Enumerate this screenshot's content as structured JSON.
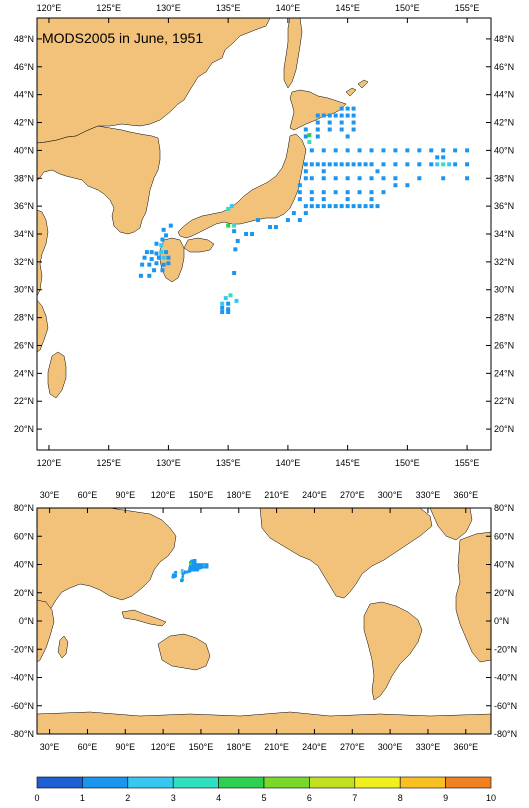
{
  "title": "MODS2005 in June, 1951",
  "colors": {
    "land": "#f2c27a",
    "ocean": "#ffffff",
    "frame": "#000000"
  },
  "regional_map": {
    "lon_range": [
      119,
      157
    ],
    "lat_range": [
      18.5,
      49.5
    ],
    "lon_ticks": [
      120,
      125,
      130,
      135,
      140,
      145,
      150,
      155
    ],
    "lon_labels": [
      "120°E",
      "125°E",
      "130°E",
      "135°E",
      "140°E",
      "145°E",
      "150°E",
      "155°E"
    ],
    "lat_ticks": [
      20,
      22,
      24,
      26,
      28,
      30,
      32,
      34,
      36,
      38,
      40,
      42,
      44,
      46,
      48
    ],
    "lat_labels": [
      "20°N",
      "22°N",
      "24°N",
      "26°N",
      "28°N",
      "30°N",
      "32°N",
      "34°N",
      "36°N",
      "38°N",
      "40°N",
      "42°N",
      "44°N",
      "46°N",
      "48°N"
    ]
  },
  "global_map": {
    "lon_range": [
      20,
      380
    ],
    "lat_range": [
      -80,
      80
    ],
    "lon_ticks": [
      30,
      60,
      90,
      120,
      150,
      180,
      210,
      240,
      270,
      300,
      330,
      360
    ],
    "lon_labels": [
      "30°E",
      "60°E",
      "90°E",
      "120°E",
      "150°E",
      "180°E",
      "210°E",
      "240°E",
      "270°E",
      "300°E",
      "330°E",
      "360°E"
    ],
    "lat_ticks": [
      -80,
      -60,
      -40,
      -20,
      0,
      20,
      40,
      60,
      80
    ],
    "lat_labels": [
      "-80°N",
      "-60°N",
      "-40°N",
      "-20°N",
      "0°N",
      "20°N",
      "40°N",
      "60°N",
      "80°N"
    ]
  },
  "colorbar": {
    "levels": [
      0,
      1,
      2,
      3,
      4,
      5,
      6,
      7,
      8,
      9,
      10
    ],
    "labels": [
      "0",
      "1",
      "2",
      "3",
      "4",
      "5",
      "6",
      "7",
      "8",
      "9",
      "10"
    ],
    "colors": [
      "#1f5fd6",
      "#1a96f0",
      "#35c8f0",
      "#2ee0c0",
      "#2ed050",
      "#7ad82a",
      "#c0e020",
      "#f0f020",
      "#f8c020",
      "#f08020"
    ]
  },
  "observations": {
    "description": "gridded observation counts (value 0-10)",
    "cells": [
      {
        "lon": 142.5,
        "lat": 42.5,
        "v": 1
      },
      {
        "lon": 143,
        "lat": 42.5,
        "v": 1
      },
      {
        "lon": 143.5,
        "lat": 42.5,
        "v": 1
      },
      {
        "lon": 144,
        "lat": 42.5,
        "v": 1
      },
      {
        "lon": 144.5,
        "lat": 42.5,
        "v": 1
      },
      {
        "lon": 145,
        "lat": 42.5,
        "v": 1
      },
      {
        "lon": 145.5,
        "lat": 42.5,
        "v": 1
      },
      {
        "lon": 144.5,
        "lat": 43,
        "v": 1
      },
      {
        "lon": 145,
        "lat": 43,
        "v": 1
      },
      {
        "lon": 145.5,
        "lat": 43,
        "v": 1
      },
      {
        "lon": 142.5,
        "lat": 42,
        "v": 1
      },
      {
        "lon": 143.5,
        "lat": 42,
        "v": 1
      },
      {
        "lon": 144.5,
        "lat": 42,
        "v": 1
      },
      {
        "lon": 145.5,
        "lat": 42,
        "v": 1
      },
      {
        "lon": 141.5,
        "lat": 41.5,
        "v": 1
      },
      {
        "lon": 142.5,
        "lat": 41.5,
        "v": 1
      },
      {
        "lon": 143.5,
        "lat": 41.5,
        "v": 1
      },
      {
        "lon": 144.5,
        "lat": 41.5,
        "v": 1
      },
      {
        "lon": 145.5,
        "lat": 41.5,
        "v": 1
      },
      {
        "lon": 141.5,
        "lat": 41,
        "v": 1
      },
      {
        "lon": 142.5,
        "lat": 41,
        "v": 1
      },
      {
        "lon": 145,
        "lat": 41,
        "v": 1
      },
      {
        "lon": 142,
        "lat": 40,
        "v": 1
      },
      {
        "lon": 143,
        "lat": 40,
        "v": 1
      },
      {
        "lon": 144,
        "lat": 40,
        "v": 1
      },
      {
        "lon": 145,
        "lat": 40,
        "v": 1
      },
      {
        "lon": 146,
        "lat": 40,
        "v": 1
      },
      {
        "lon": 147,
        "lat": 40,
        "v": 1
      },
      {
        "lon": 148,
        "lat": 40,
        "v": 1
      },
      {
        "lon": 149,
        "lat": 40,
        "v": 1
      },
      {
        "lon": 150,
        "lat": 40,
        "v": 1
      },
      {
        "lon": 151,
        "lat": 40,
        "v": 1
      },
      {
        "lon": 152,
        "lat": 40,
        "v": 1
      },
      {
        "lon": 153,
        "lat": 40,
        "v": 1
      },
      {
        "lon": 154,
        "lat": 40,
        "v": 1
      },
      {
        "lon": 155,
        "lat": 40,
        "v": 1
      },
      {
        "lon": 152.5,
        "lat": 39.5,
        "v": 1
      },
      {
        "lon": 153,
        "lat": 39.5,
        "v": 1
      },
      {
        "lon": 141.5,
        "lat": 39,
        "v": 1
      },
      {
        "lon": 142,
        "lat": 39,
        "v": 1
      },
      {
        "lon": 142.5,
        "lat": 39,
        "v": 1
      },
      {
        "lon": 143,
        "lat": 39,
        "v": 1
      },
      {
        "lon": 143.5,
        "lat": 39,
        "v": 1
      },
      {
        "lon": 144,
        "lat": 39,
        "v": 1
      },
      {
        "lon": 144.5,
        "lat": 39,
        "v": 1
      },
      {
        "lon": 145,
        "lat": 39,
        "v": 1
      },
      {
        "lon": 145.5,
        "lat": 39,
        "v": 1
      },
      {
        "lon": 146,
        "lat": 39,
        "v": 1
      },
      {
        "lon": 146.5,
        "lat": 39,
        "v": 1
      },
      {
        "lon": 147,
        "lat": 39,
        "v": 1
      },
      {
        "lon": 148,
        "lat": 39,
        "v": 1
      },
      {
        "lon": 149,
        "lat": 39,
        "v": 1
      },
      {
        "lon": 150,
        "lat": 39,
        "v": 1
      },
      {
        "lon": 151,
        "lat": 39,
        "v": 1
      },
      {
        "lon": 152,
        "lat": 39,
        "v": 1
      },
      {
        "lon": 152.5,
        "lat": 39,
        "v": 2
      },
      {
        "lon": 153,
        "lat": 39,
        "v": 3
      },
      {
        "lon": 153.5,
        "lat": 39,
        "v": 2
      },
      {
        "lon": 154,
        "lat": 39,
        "v": 1
      },
      {
        "lon": 155,
        "lat": 39,
        "v": 1
      },
      {
        "lon": 141.5,
        "lat": 38.5,
        "v": 1
      },
      {
        "lon": 143,
        "lat": 38.5,
        "v": 1
      },
      {
        "lon": 147.5,
        "lat": 38.5,
        "v": 1
      },
      {
        "lon": 141.5,
        "lat": 38,
        "v": 1
      },
      {
        "lon": 142,
        "lat": 38,
        "v": 1
      },
      {
        "lon": 143,
        "lat": 38,
        "v": 1
      },
      {
        "lon": 144,
        "lat": 38,
        "v": 1
      },
      {
        "lon": 145,
        "lat": 38,
        "v": 1
      },
      {
        "lon": 146,
        "lat": 38,
        "v": 1
      },
      {
        "lon": 147,
        "lat": 38,
        "v": 1
      },
      {
        "lon": 148,
        "lat": 38,
        "v": 1
      },
      {
        "lon": 149,
        "lat": 38,
        "v": 1
      },
      {
        "lon": 151,
        "lat": 38,
        "v": 1
      },
      {
        "lon": 153,
        "lat": 38,
        "v": 1
      },
      {
        "lon": 155,
        "lat": 38,
        "v": 1
      },
      {
        "lon": 141,
        "lat": 37.5,
        "v": 1
      },
      {
        "lon": 149,
        "lat": 37.5,
        "v": 1
      },
      {
        "lon": 150,
        "lat": 37.5,
        "v": 1
      },
      {
        "lon": 141,
        "lat": 37,
        "v": 1
      },
      {
        "lon": 142,
        "lat": 37,
        "v": 1
      },
      {
        "lon": 143,
        "lat": 37,
        "v": 1
      },
      {
        "lon": 144,
        "lat": 37,
        "v": 1
      },
      {
        "lon": 145,
        "lat": 37,
        "v": 1
      },
      {
        "lon": 146,
        "lat": 37,
        "v": 1
      },
      {
        "lon": 147,
        "lat": 37,
        "v": 1
      },
      {
        "lon": 148,
        "lat": 37,
        "v": 1
      },
      {
        "lon": 141,
        "lat": 36.5,
        "v": 1
      },
      {
        "lon": 142,
        "lat": 36.5,
        "v": 1
      },
      {
        "lon": 143,
        "lat": 36.5,
        "v": 1
      },
      {
        "lon": 145,
        "lat": 36.5,
        "v": 1
      },
      {
        "lon": 147,
        "lat": 36.5,
        "v": 1
      },
      {
        "lon": 141.5,
        "lat": 36,
        "v": 1
      },
      {
        "lon": 142,
        "lat": 36,
        "v": 1
      },
      {
        "lon": 142.5,
        "lat": 36,
        "v": 1
      },
      {
        "lon": 143,
        "lat": 36,
        "v": 1
      },
      {
        "lon": 143.5,
        "lat": 36,
        "v": 1
      },
      {
        "lon": 144,
        "lat": 36,
        "v": 1
      },
      {
        "lon": 144.5,
        "lat": 36,
        "v": 1
      },
      {
        "lon": 145,
        "lat": 36,
        "v": 1
      },
      {
        "lon": 145.5,
        "lat": 36,
        "v": 1
      },
      {
        "lon": 146,
        "lat": 36,
        "v": 1
      },
      {
        "lon": 146.5,
        "lat": 36,
        "v": 1
      },
      {
        "lon": 147,
        "lat": 36,
        "v": 1
      },
      {
        "lon": 147.5,
        "lat": 36,
        "v": 1
      },
      {
        "lon": 140.5,
        "lat": 35.5,
        "v": 1
      },
      {
        "lon": 141.5,
        "lat": 35.5,
        "v": 1
      },
      {
        "lon": 140,
        "lat": 35,
        "v": 1
      },
      {
        "lon": 141,
        "lat": 35,
        "v": 1
      },
      {
        "lon": 137.5,
        "lat": 35,
        "v": 1
      },
      {
        "lon": 138.5,
        "lat": 34.5,
        "v": 1
      },
      {
        "lon": 139,
        "lat": 34.5,
        "v": 1
      },
      {
        "lon": 136.5,
        "lat": 34,
        "v": 1
      },
      {
        "lon": 137,
        "lat": 34,
        "v": 1
      },
      {
        "lon": 135.5,
        "lat": 34.2,
        "v": 1
      },
      {
        "lon": 135,
        "lat": 34.6,
        "v": 4
      },
      {
        "lon": 135.5,
        "lat": 34.6,
        "v": 3
      },
      {
        "lon": 135,
        "lat": 35.8,
        "v": 3
      },
      {
        "lon": 135.3,
        "lat": 36,
        "v": 2
      },
      {
        "lon": 135.8,
        "lat": 33.5,
        "v": 1
      },
      {
        "lon": 135.6,
        "lat": 32.9,
        "v": 1
      },
      {
        "lon": 135.5,
        "lat": 31.2,
        "v": 1
      },
      {
        "lon": 141.8,
        "lat": 40.6,
        "v": 3
      },
      {
        "lon": 141.8,
        "lat": 41.1,
        "v": 4
      },
      {
        "lon": 130.2,
        "lat": 34.6,
        "v": 1
      },
      {
        "lon": 129.6,
        "lat": 34.3,
        "v": 1
      },
      {
        "lon": 129.8,
        "lat": 33.9,
        "v": 1
      },
      {
        "lon": 129.5,
        "lat": 33.6,
        "v": 1
      },
      {
        "lon": 129,
        "lat": 33.3,
        "v": 1
      },
      {
        "lon": 129.4,
        "lat": 33.2,
        "v": 2
      },
      {
        "lon": 128.2,
        "lat": 32.7,
        "v": 1
      },
      {
        "lon": 128.6,
        "lat": 32.7,
        "v": 1
      },
      {
        "lon": 129,
        "lat": 32.6,
        "v": 1
      },
      {
        "lon": 129.4,
        "lat": 32.7,
        "v": 2
      },
      {
        "lon": 129.8,
        "lat": 32.7,
        "v": 1
      },
      {
        "lon": 128,
        "lat": 32.3,
        "v": 1
      },
      {
        "lon": 128.6,
        "lat": 32.2,
        "v": 1
      },
      {
        "lon": 129.2,
        "lat": 32.3,
        "v": 1
      },
      {
        "lon": 129.6,
        "lat": 32.3,
        "v": 2
      },
      {
        "lon": 130,
        "lat": 32.3,
        "v": 1
      },
      {
        "lon": 127.8,
        "lat": 31.8,
        "v": 1
      },
      {
        "lon": 128.4,
        "lat": 31.8,
        "v": 1
      },
      {
        "lon": 129,
        "lat": 31.9,
        "v": 1
      },
      {
        "lon": 129.6,
        "lat": 31.8,
        "v": 1
      },
      {
        "lon": 130,
        "lat": 31.9,
        "v": 1
      },
      {
        "lon": 128.8,
        "lat": 31.4,
        "v": 1
      },
      {
        "lon": 129.5,
        "lat": 31.4,
        "v": 1
      },
      {
        "lon": 127.7,
        "lat": 31,
        "v": 1
      },
      {
        "lon": 128.4,
        "lat": 31,
        "v": 1
      },
      {
        "lon": 134.8,
        "lat": 29.4,
        "v": 2
      },
      {
        "lon": 135.2,
        "lat": 29.6,
        "v": 3
      },
      {
        "lon": 135.7,
        "lat": 29.2,
        "v": 2
      },
      {
        "lon": 134.5,
        "lat": 29,
        "v": 2
      },
      {
        "lon": 135,
        "lat": 29,
        "v": 1
      },
      {
        "lon": 134.5,
        "lat": 28.7,
        "v": 1
      },
      {
        "lon": 135,
        "lat": 28.6,
        "v": 1
      },
      {
        "lon": 134.5,
        "lat": 28.4,
        "v": 1
      },
      {
        "lon": 135,
        "lat": 28.4,
        "v": 1
      }
    ]
  }
}
